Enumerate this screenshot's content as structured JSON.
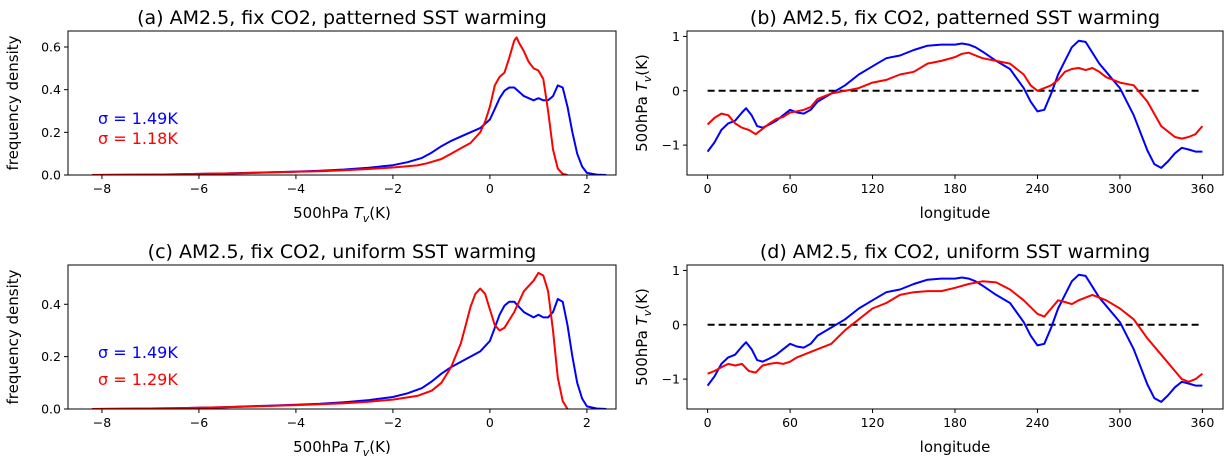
{
  "chart_data": [
    {
      "id": "a",
      "type": "line",
      "title": "(a) AM2.5, fix CO2, patterned SST warming",
      "xlabel": "500hPa T_v(K)",
      "ylabel": "frequency density",
      "xlim": [
        -8.7,
        2.6
      ],
      "ylim": [
        0,
        0.675
      ],
      "xticks": [
        -8,
        -6,
        -4,
        -2,
        0,
        2
      ],
      "yticks": [
        0.0,
        0.2,
        0.4,
        0.6
      ],
      "ytick_labels": [
        "0.0",
        "0.2",
        "0.4",
        "0.6"
      ],
      "grid": false,
      "annotations": [
        {
          "text": "σ = 1.49K",
          "color": "#0000ff"
        },
        {
          "text": "σ = 1.18K",
          "color": "#ff0000"
        }
      ],
      "series": [
        {
          "color": "#0000ff",
          "x": [
            -8.2,
            -7.5,
            -7,
            -6.5,
            -6,
            -5.5,
            -5,
            -4.5,
            -4,
            -3.5,
            -3,
            -2.5,
            -2,
            -1.7,
            -1.4,
            -1.2,
            -1,
            -0.8,
            -0.6,
            -0.4,
            -0.2,
            0,
            0.1,
            0.2,
            0.3,
            0.4,
            0.5,
            0.6,
            0.7,
            0.8,
            0.9,
            1,
            1.1,
            1.2,
            1.3,
            1.4,
            1.5,
            1.6,
            1.7,
            1.8,
            1.9,
            2,
            2.2,
            2.4
          ],
          "y": [
            0,
            0.001,
            0.002,
            0.003,
            0.005,
            0.007,
            0.01,
            0.013,
            0.016,
            0.02,
            0.026,
            0.034,
            0.046,
            0.06,
            0.08,
            0.105,
            0.135,
            0.16,
            0.18,
            0.2,
            0.22,
            0.26,
            0.31,
            0.36,
            0.395,
            0.41,
            0.41,
            0.39,
            0.37,
            0.36,
            0.35,
            0.36,
            0.35,
            0.35,
            0.37,
            0.42,
            0.41,
            0.32,
            0.2,
            0.1,
            0.04,
            0.01,
            0.002,
            0
          ]
        },
        {
          "color": "#ff0000",
          "x": [
            -8.2,
            -7.5,
            -7,
            -6.5,
            -6,
            -5.5,
            -5,
            -4.5,
            -4,
            -3.5,
            -3,
            -2.5,
            -2,
            -1.5,
            -1.3,
            -1,
            -0.8,
            -0.6,
            -0.4,
            -0.2,
            -0.1,
            0,
            0.1,
            0.2,
            0.3,
            0.4,
            0.5,
            0.55,
            0.6,
            0.7,
            0.8,
            0.9,
            1,
            1.1,
            1.2,
            1.3,
            1.4,
            1.5,
            1.6
          ],
          "y": [
            0,
            0.001,
            0.002,
            0.003,
            0.005,
            0.007,
            0.009,
            0.012,
            0.015,
            0.018,
            0.022,
            0.028,
            0.035,
            0.045,
            0.055,
            0.075,
            0.1,
            0.125,
            0.15,
            0.2,
            0.25,
            0.32,
            0.42,
            0.46,
            0.48,
            0.55,
            0.63,
            0.645,
            0.62,
            0.58,
            0.53,
            0.5,
            0.49,
            0.45,
            0.3,
            0.12,
            0.03,
            0.005,
            0
          ]
        }
      ]
    },
    {
      "id": "b",
      "type": "line",
      "title": "(b) AM2.5, fix CO2, patterned SST warming",
      "xlabel": "longitude",
      "ylabel": "500hPa T_v(K)",
      "xlim": [
        -15,
        375
      ],
      "ylim": [
        -1.55,
        1.1
      ],
      "xticks": [
        0,
        60,
        120,
        180,
        240,
        300,
        360
      ],
      "yticks": [
        -1,
        0,
        1
      ],
      "ytick_labels": [
        "−1",
        "0",
        "1"
      ],
      "zero_line": {
        "y": 0,
        "x": [
          0,
          360
        ],
        "color": "#000000",
        "style": "dashed"
      },
      "grid": false,
      "series": [
        {
          "color": "#0000ff",
          "x": [
            0,
            5,
            10,
            15,
            20,
            25,
            28,
            32,
            36,
            40,
            45,
            50,
            55,
            60,
            65,
            70,
            75,
            80,
            90,
            100,
            110,
            120,
            130,
            140,
            150,
            160,
            170,
            180,
            185,
            190,
            195,
            200,
            210,
            220,
            230,
            235,
            240,
            245,
            250,
            255,
            260,
            265,
            270,
            275,
            280,
            285,
            290,
            300,
            310,
            320,
            325,
            330,
            335,
            340,
            345,
            350,
            355,
            360
          ],
          "y": [
            -1.12,
            -0.95,
            -0.72,
            -0.6,
            -0.55,
            -0.4,
            -0.32,
            -0.45,
            -0.65,
            -0.68,
            -0.62,
            -0.55,
            -0.45,
            -0.35,
            -0.4,
            -0.42,
            -0.35,
            -0.2,
            -0.05,
            0.1,
            0.3,
            0.45,
            0.6,
            0.65,
            0.75,
            0.83,
            0.85,
            0.85,
            0.87,
            0.85,
            0.8,
            0.72,
            0.55,
            0.4,
            0.05,
            -0.2,
            -0.38,
            -0.35,
            -0.05,
            0.3,
            0.55,
            0.8,
            0.92,
            0.9,
            0.7,
            0.5,
            0.35,
            0.05,
            -0.45,
            -1.1,
            -1.35,
            -1.42,
            -1.3,
            -1.15,
            -1.05,
            -1.08,
            -1.12,
            -1.12
          ]
        },
        {
          "color": "#ff0000",
          "x": [
            0,
            5,
            10,
            15,
            20,
            25,
            30,
            35,
            40,
            45,
            50,
            55,
            60,
            65,
            70,
            75,
            80,
            90,
            100,
            110,
            120,
            130,
            140,
            150,
            160,
            170,
            180,
            185,
            190,
            195,
            200,
            210,
            220,
            230,
            235,
            240,
            245,
            250,
            255,
            260,
            265,
            270,
            275,
            280,
            285,
            290,
            300,
            310,
            320,
            330,
            340,
            345,
            350,
            355,
            360
          ],
          "y": [
            -0.62,
            -0.5,
            -0.42,
            -0.45,
            -0.6,
            -0.68,
            -0.72,
            -0.8,
            -0.7,
            -0.6,
            -0.52,
            -0.48,
            -0.4,
            -0.38,
            -0.35,
            -0.3,
            -0.15,
            -0.05,
            0,
            0.05,
            0.15,
            0.2,
            0.3,
            0.35,
            0.5,
            0.55,
            0.62,
            0.68,
            0.7,
            0.65,
            0.6,
            0.55,
            0.5,
            0.3,
            0.1,
            0,
            0.05,
            0.1,
            0.2,
            0.35,
            0.4,
            0.42,
            0.38,
            0.42,
            0.35,
            0.25,
            0.15,
            0.1,
            -0.2,
            -0.65,
            -0.85,
            -0.88,
            -0.85,
            -0.8,
            -0.65
          ]
        }
      ]
    },
    {
      "id": "c",
      "type": "line",
      "title": "(c) AM2.5, fix CO2, uniform SST warming",
      "xlabel": "500hPa T_v(K)",
      "ylabel": "frequency density",
      "xlim": [
        -8.7,
        2.6
      ],
      "ylim": [
        0,
        0.55
      ],
      "xticks": [
        -8,
        -6,
        -4,
        -2,
        0,
        2
      ],
      "yticks": [
        0.0,
        0.2,
        0.4
      ],
      "ytick_labels": [
        "0.0",
        "0.2",
        "0.4"
      ],
      "grid": false,
      "annotations": [
        {
          "text": "σ = 1.49K",
          "color": "#0000ff"
        },
        {
          "text": "σ = 1.29K",
          "color": "#ff0000"
        }
      ],
      "series": [
        {
          "color": "#0000ff",
          "x": [
            -8.2,
            -7.5,
            -7,
            -6.5,
            -6,
            -5.5,
            -5,
            -4.5,
            -4,
            -3.5,
            -3,
            -2.5,
            -2,
            -1.7,
            -1.4,
            -1.2,
            -1,
            -0.8,
            -0.6,
            -0.4,
            -0.2,
            0,
            0.1,
            0.2,
            0.3,
            0.4,
            0.5,
            0.6,
            0.7,
            0.8,
            0.9,
            1,
            1.1,
            1.2,
            1.3,
            1.4,
            1.5,
            1.6,
            1.7,
            1.8,
            1.9,
            2,
            2.2,
            2.4
          ],
          "y": [
            0,
            0.001,
            0.002,
            0.003,
            0.005,
            0.007,
            0.01,
            0.013,
            0.016,
            0.02,
            0.026,
            0.034,
            0.046,
            0.06,
            0.08,
            0.105,
            0.135,
            0.16,
            0.18,
            0.2,
            0.22,
            0.26,
            0.31,
            0.36,
            0.395,
            0.41,
            0.41,
            0.39,
            0.37,
            0.36,
            0.35,
            0.36,
            0.35,
            0.35,
            0.37,
            0.42,
            0.41,
            0.32,
            0.2,
            0.1,
            0.04,
            0.01,
            0.002,
            0
          ]
        },
        {
          "color": "#ff0000",
          "x": [
            -8.2,
            -7.5,
            -7,
            -6.5,
            -6,
            -5.5,
            -5,
            -4.5,
            -4,
            -3.5,
            -3,
            -2.5,
            -2,
            -1.5,
            -1.2,
            -1,
            -0.8,
            -0.6,
            -0.5,
            -0.4,
            -0.3,
            -0.2,
            -0.1,
            0,
            0.1,
            0.2,
            0.3,
            0.4,
            0.5,
            0.6,
            0.7,
            0.8,
            0.9,
            1,
            1.1,
            1.2,
            1.3,
            1.4,
            1.5,
            1.6
          ],
          "y": [
            0,
            0.001,
            0.002,
            0.003,
            0.005,
            0.007,
            0.009,
            0.012,
            0.015,
            0.018,
            0.022,
            0.028,
            0.036,
            0.05,
            0.07,
            0.1,
            0.16,
            0.25,
            0.32,
            0.39,
            0.44,
            0.46,
            0.44,
            0.38,
            0.32,
            0.3,
            0.31,
            0.34,
            0.37,
            0.41,
            0.45,
            0.47,
            0.49,
            0.52,
            0.51,
            0.45,
            0.3,
            0.12,
            0.03,
            0
          ]
        }
      ]
    },
    {
      "id": "d",
      "type": "line",
      "title": "(d) AM2.5, fix CO2, uniform SST warming",
      "xlabel": "longitude",
      "ylabel": "500hPa T_v(K)",
      "xlim": [
        -15,
        375
      ],
      "ylim": [
        -1.55,
        1.1
      ],
      "xticks": [
        0,
        60,
        120,
        180,
        240,
        300,
        360
      ],
      "yticks": [
        -1,
        0,
        1
      ],
      "ytick_labels": [
        "−1",
        "0",
        "1"
      ],
      "zero_line": {
        "y": 0,
        "x": [
          0,
          360
        ],
        "color": "#000000",
        "style": "dashed"
      },
      "grid": false,
      "series": [
        {
          "color": "#0000ff",
          "x": [
            0,
            5,
            10,
            15,
            20,
            25,
            28,
            32,
            36,
            40,
            45,
            50,
            55,
            60,
            65,
            70,
            75,
            80,
            90,
            100,
            110,
            120,
            130,
            140,
            150,
            160,
            170,
            180,
            185,
            190,
            195,
            200,
            210,
            220,
            230,
            235,
            240,
            245,
            250,
            255,
            260,
            265,
            270,
            275,
            280,
            285,
            290,
            300,
            310,
            320,
            325,
            330,
            335,
            340,
            345,
            350,
            355,
            360
          ],
          "y": [
            -1.12,
            -0.95,
            -0.72,
            -0.6,
            -0.55,
            -0.4,
            -0.32,
            -0.45,
            -0.65,
            -0.68,
            -0.62,
            -0.55,
            -0.45,
            -0.35,
            -0.4,
            -0.42,
            -0.35,
            -0.2,
            -0.05,
            0.1,
            0.3,
            0.45,
            0.6,
            0.65,
            0.75,
            0.83,
            0.85,
            0.85,
            0.87,
            0.85,
            0.8,
            0.72,
            0.55,
            0.4,
            0.05,
            -0.2,
            -0.38,
            -0.35,
            -0.05,
            0.3,
            0.55,
            0.8,
            0.92,
            0.9,
            0.7,
            0.5,
            0.35,
            0.05,
            -0.45,
            -1.1,
            -1.35,
            -1.42,
            -1.3,
            -1.15,
            -1.05,
            -1.08,
            -1.12,
            -1.12
          ]
        },
        {
          "color": "#ff0000",
          "x": [
            0,
            5,
            10,
            15,
            20,
            25,
            30,
            35,
            40,
            45,
            50,
            55,
            60,
            65,
            70,
            75,
            80,
            90,
            100,
            110,
            120,
            130,
            140,
            150,
            160,
            170,
            180,
            190,
            200,
            210,
            220,
            230,
            240,
            245,
            250,
            255,
            260,
            265,
            270,
            275,
            280,
            285,
            290,
            300,
            310,
            320,
            330,
            340,
            345,
            350,
            355,
            360
          ],
          "y": [
            -0.9,
            -0.85,
            -0.78,
            -0.72,
            -0.75,
            -0.72,
            -0.85,
            -0.88,
            -0.75,
            -0.72,
            -0.7,
            -0.72,
            -0.68,
            -0.6,
            -0.55,
            -0.5,
            -0.45,
            -0.35,
            -0.1,
            0.1,
            0.3,
            0.4,
            0.55,
            0.6,
            0.62,
            0.62,
            0.68,
            0.75,
            0.8,
            0.78,
            0.65,
            0.45,
            0.2,
            0.15,
            0.3,
            0.45,
            0.42,
            0.38,
            0.45,
            0.5,
            0.55,
            0.5,
            0.45,
            0.3,
            0.1,
            -0.25,
            -0.55,
            -0.85,
            -1.0,
            -1.05,
            -1.0,
            -0.9
          ]
        }
      ]
    }
  ]
}
